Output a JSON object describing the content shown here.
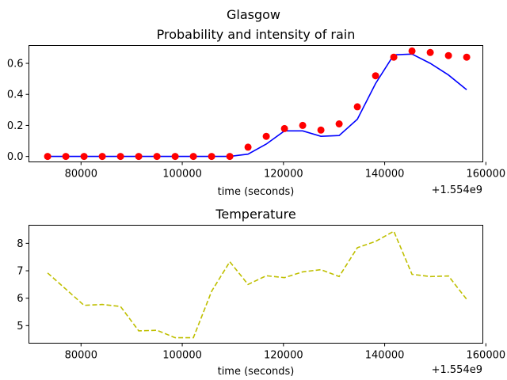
{
  "figure": {
    "suptitle": "Glasgow"
  },
  "chart_data": [
    {
      "type": "line",
      "title": "Probability and intensity of rain",
      "xlabel": "time (seconds)",
      "ylabel": "",
      "x_offset_label": "+1.554e9",
      "xlim": [
        69700,
        159400
      ],
      "ylim": [
        -0.035,
        0.715
      ],
      "x_ticks": [
        80000,
        100000,
        120000,
        140000,
        160000
      ],
      "x_tick_labels": [
        "80000",
        "100000",
        "120000",
        "140000",
        "160000"
      ],
      "y_ticks": [
        0.0,
        0.2,
        0.4,
        0.6
      ],
      "y_tick_labels": [
        "0.0",
        "0.2",
        "0.4",
        "0.6"
      ],
      "x": [
        73400,
        77000,
        80600,
        84200,
        87800,
        91400,
        95000,
        98600,
        102200,
        105800,
        109400,
        113000,
        116600,
        120200,
        123800,
        127400,
        131000,
        134600,
        138200,
        141800,
        145400,
        149000,
        152600,
        156200
      ],
      "series": [
        {
          "kind": "line",
          "color": "#0000ff",
          "style": "solid",
          "values": [
            0.0,
            0.0,
            0.0,
            0.0,
            0.0,
            0.0,
            0.0,
            0.0,
            0.0,
            0.0,
            0.0,
            0.015,
            0.08,
            0.165,
            0.165,
            0.13,
            0.135,
            0.24,
            0.47,
            0.655,
            0.66,
            0.6,
            0.525,
            0.43
          ]
        },
        {
          "kind": "scatter",
          "color": "#ff0000",
          "values": [
            0.0,
            0.0,
            0.0,
            0.0,
            0.0,
            0.0,
            0.0,
            0.0,
            0.0,
            0.0,
            0.0,
            0.06,
            0.13,
            0.18,
            0.2,
            0.17,
            0.21,
            0.32,
            0.52,
            0.64,
            0.68,
            0.67,
            0.65,
            0.64
          ]
        }
      ]
    },
    {
      "type": "line",
      "title": "Temperature",
      "xlabel": "time (seconds)",
      "ylabel": "",
      "x_offset_label": "+1.554e9",
      "xlim": [
        69700,
        159400
      ],
      "ylim": [
        4.36,
        8.66
      ],
      "x_ticks": [
        80000,
        100000,
        120000,
        140000,
        160000
      ],
      "x_tick_labels": [
        "80000",
        "100000",
        "120000",
        "140000",
        "160000"
      ],
      "y_ticks": [
        5,
        6,
        7,
        8
      ],
      "y_tick_labels": [
        "5",
        "6",
        "7",
        "8"
      ],
      "x": [
        73400,
        77000,
        80600,
        84200,
        87800,
        91400,
        95000,
        98600,
        102200,
        105800,
        109400,
        113000,
        116600,
        120200,
        123800,
        127400,
        131000,
        134600,
        138200,
        141800,
        145400,
        149000,
        152600,
        156200
      ],
      "series": [
        {
          "kind": "line",
          "color": "#bfbf00",
          "style": "dashed",
          "values": [
            6.92,
            6.33,
            5.74,
            5.77,
            5.7,
            4.81,
            4.83,
            4.56,
            4.56,
            6.25,
            7.33,
            6.5,
            6.82,
            6.75,
            6.96,
            7.04,
            6.79,
            7.84,
            8.07,
            8.44,
            6.87,
            6.79,
            6.81,
            5.96
          ]
        }
      ]
    }
  ]
}
